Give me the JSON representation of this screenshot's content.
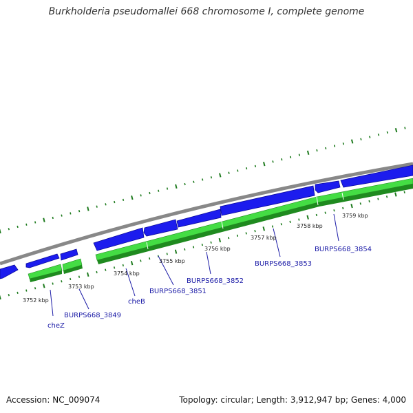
{
  "title": "Burkholderia pseudomallei 668 chromosome I, complete genome",
  "accession": "Accession: NC_009074",
  "summary": "Topology: circular; Length: 3,912,947 bp; Genes: 4,000",
  "colors": {
    "backbone": "#888888",
    "forward_cds": "#1c1cee",
    "reverse_cds_light": "#44dd44",
    "reverse_cds_dark": "#1f8a1f",
    "tick": "#1d7a1d",
    "label_link": "#1a1aa6"
  },
  "kbp_labels": [
    {
      "text": "3752 kbp"
    },
    {
      "text": "3753 kbp"
    },
    {
      "text": "3754 kbp"
    },
    {
      "text": "3755 kbp"
    },
    {
      "text": "3756 kbp"
    },
    {
      "text": "3757 kbp"
    },
    {
      "text": "3758 kbp"
    },
    {
      "text": "3759 kbp"
    }
  ],
  "gene_labels": [
    {
      "text": "cheZ"
    },
    {
      "text": "BURPS668_3849"
    },
    {
      "text": "cheB"
    },
    {
      "text": "BURPS668_3851"
    },
    {
      "text": "BURPS668_3852"
    },
    {
      "text": "BURPS668_3853"
    },
    {
      "text": "BURPS668_3854"
    }
  ]
}
